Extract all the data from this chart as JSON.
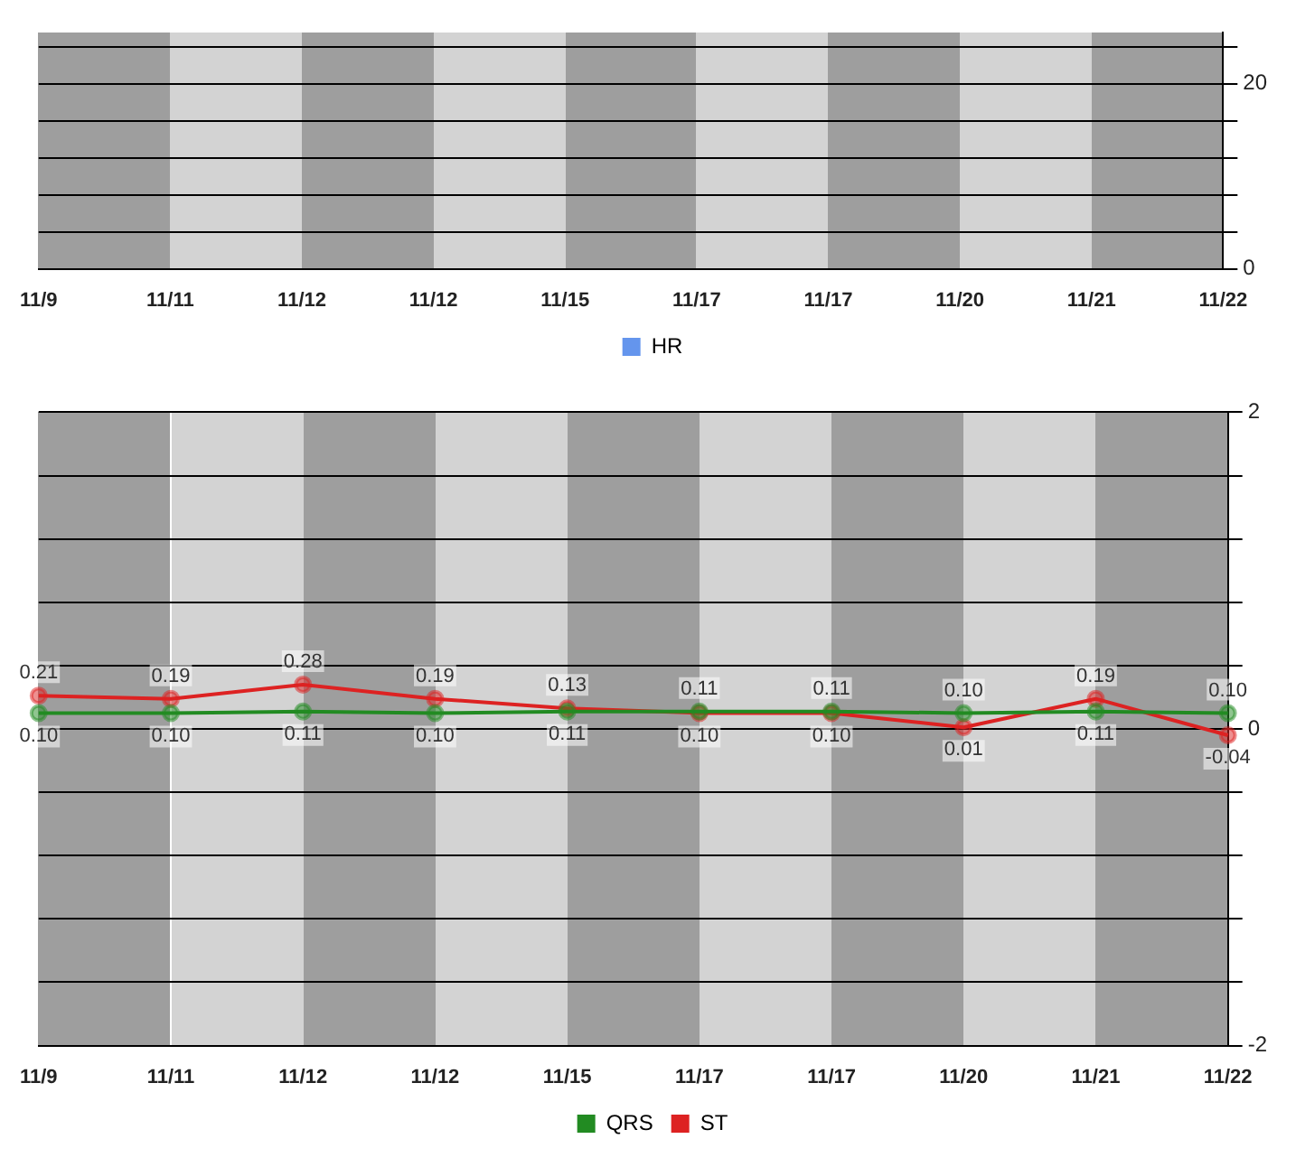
{
  "chart_data": [
    {
      "type": "line",
      "categories": [
        "11/9",
        "11/11",
        "11/12",
        "11/12",
        "11/15",
        "11/17",
        "11/17",
        "11/20",
        "11/21",
        "11/22"
      ],
      "series": [
        {
          "name": "HR",
          "color": "#6495ed",
          "values": [
            null,
            null,
            null,
            null,
            null,
            null,
            null,
            null,
            null,
            null
          ]
        }
      ],
      "ylim": [
        0,
        25.5
      ],
      "yticks": [
        0,
        {
          "value": 4,
          "label": null
        },
        {
          "value": 8,
          "label": null
        },
        {
          "value": 12,
          "label": null
        },
        {
          "value": 16,
          "label": null
        },
        20,
        {
          "value": 24,
          "label": null
        }
      ],
      "grid": "y",
      "legend": "bottom",
      "marker": "circle"
    },
    {
      "type": "line",
      "categories": [
        "11/9",
        "11/11",
        "11/12",
        "11/12",
        "11/15",
        "11/17",
        "11/17",
        "11/20",
        "11/21",
        "11/22"
      ],
      "series": [
        {
          "name": "QRS",
          "color": "#228b22",
          "values": [
            0.1,
            0.1,
            0.11,
            0.1,
            0.11,
            0.11,
            0.11,
            0.1,
            0.11,
            0.1
          ],
          "value_labels": [
            "0.10",
            "0.10",
            "0.11",
            "0.10",
            "0.11",
            "0.11",
            "0.11",
            "0.10",
            "0.11",
            "0.10"
          ]
        },
        {
          "name": "ST",
          "color": "#dd2222",
          "values": [
            0.21,
            0.19,
            0.28,
            0.19,
            0.13,
            0.1,
            0.1,
            0.01,
            0.19,
            -0.04
          ],
          "value_labels": [
            "0.21",
            "0.19",
            "0.28",
            "0.19",
            "0.13",
            "0.10",
            "0.10",
            "0.01",
            "0.19",
            "-0.04"
          ]
        }
      ],
      "ylim": [
        -2,
        2
      ],
      "yticks": [
        -2,
        {
          "value": -1.6,
          "label": null
        },
        {
          "value": -1.2,
          "label": null
        },
        {
          "value": -0.8,
          "label": null
        },
        {
          "value": -0.4,
          "label": null
        },
        0,
        {
          "value": 0.4,
          "label": null
        },
        {
          "value": 0.8,
          "label": null
        },
        {
          "value": 1.2,
          "label": null
        },
        {
          "value": 1.6,
          "label": null
        },
        2
      ],
      "grid": "y",
      "legend": "bottom",
      "marker": "circle"
    }
  ]
}
